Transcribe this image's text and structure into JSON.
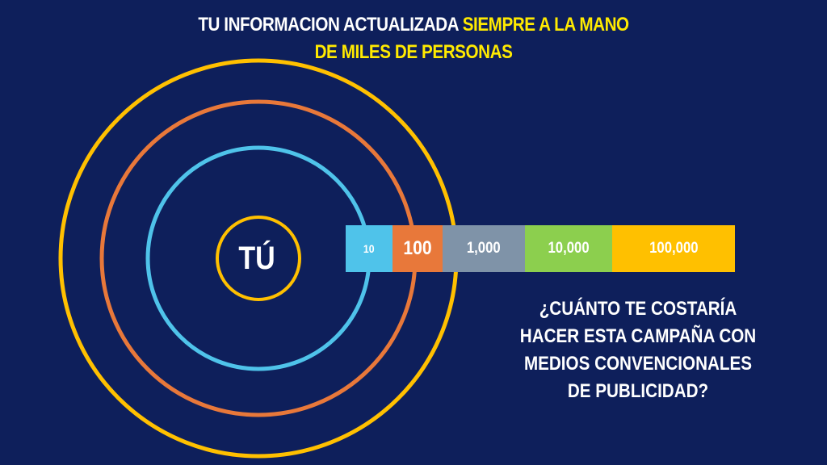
{
  "title": {
    "line1_white": "TU INFORMACION ACTUALIZADA ",
    "line1_yellow": "SIEMPRE A LA MANO",
    "line2_yellow": "DE MILES DE PERSONAS"
  },
  "center_label": "TÚ",
  "scale": [
    {
      "label": "10",
      "color": "#4fc3ea"
    },
    {
      "label": "100",
      "color": "#e8783a"
    },
    {
      "label": "1,000",
      "color": "#7f93a8"
    },
    {
      "label": "10,000",
      "color": "#8ccf4e"
    },
    {
      "label": "100,000",
      "color": "#ffc000"
    }
  ],
  "rings": [
    {
      "name": "center",
      "color": "#ffc000"
    },
    {
      "name": "inner",
      "color": "#4fc3ea"
    },
    {
      "name": "middle",
      "color": "#e8783a"
    },
    {
      "name": "outer",
      "color": "#ffc000"
    }
  ],
  "question": {
    "line1": "¿CUÁNTO TE COSTARÍA",
    "line2": "HACER ESTA CAMPAÑA CON",
    "line3": "MEDIOS CONVENCIONALES",
    "line4": "DE PUBLICIDAD?"
  },
  "colors": {
    "background": "#0e1f5b",
    "highlight": "#ffea00",
    "text": "#ffffff"
  }
}
